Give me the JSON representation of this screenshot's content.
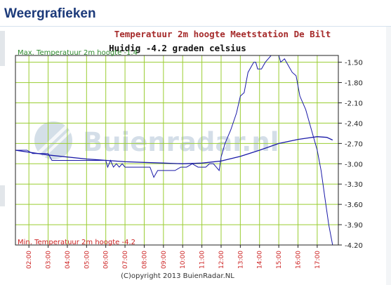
{
  "header": {
    "title": "Weergrafieken"
  },
  "chart_data": {
    "type": "line",
    "title": "Temperatuur 2m hoogte Meetstation De Bilt",
    "subtitle": "Huidig -4.2 graden celsius",
    "max_label": "Max. Temperatuur 2m hoogte -1.4",
    "min_label": "Min. Temperatuur 2m hoogte -4.2",
    "watermark": "Buienradar.nl",
    "copyright": "(C)opyright 2013 BuienRadar.NL",
    "xlim": [
      1.3,
      18.1
    ],
    "ylim": [
      -4.2,
      -1.4
    ],
    "x_ticks": [
      2,
      3,
      4,
      5,
      6,
      7,
      8,
      9,
      10,
      11,
      12,
      13,
      14,
      15,
      16,
      17
    ],
    "x_tick_labels": [
      "02:00",
      "03:00",
      "04:00",
      "05:00",
      "06:00",
      "07:00",
      "08:00",
      "09:00",
      "10:00",
      "11:00",
      "12:00",
      "13:00",
      "14:00",
      "15:00",
      "16:00",
      "17:00"
    ],
    "y_ticks": [
      -1.5,
      -1.8,
      -2.1,
      -2.4,
      -2.7,
      -3.0,
      -3.3,
      -3.6,
      -3.9,
      -4.2
    ],
    "y_tick_labels": [
      "-1.50",
      "-1.80",
      "-2.10",
      "-2.40",
      "-2.70",
      "-3.00",
      "-3.30",
      "-3.60",
      "-3.90",
      "-4.20"
    ],
    "grid": true,
    "colors": {
      "title": "#a52a2a",
      "line": "#1a1aa8",
      "grid": "#9acd32",
      "max_label": "#2e8b2e",
      "min_label": "#cc2222",
      "header": "#1c3a7a"
    },
    "series": [
      {
        "x": [
          1.3,
          1.9,
          2.2,
          2.6,
          3.0,
          3.2,
          3.6,
          4.0,
          4.5,
          5.0,
          5.5,
          6.0,
          6.1,
          6.25,
          6.4,
          6.55,
          6.7,
          6.85,
          7.0,
          7.2,
          7.5,
          8.0,
          8.3,
          8.5,
          8.7,
          9.0,
          9.3,
          9.6,
          9.9,
          10.2,
          10.5,
          10.8,
          11.0,
          11.2,
          11.4,
          11.6,
          11.75,
          11.9,
          12.0,
          12.2,
          12.5,
          12.8,
          13.0,
          13.2,
          13.4,
          13.7,
          13.8,
          13.9,
          14.1,
          14.3,
          14.6,
          14.8,
          15.0,
          15.1,
          15.3,
          15.5,
          15.7,
          15.9,
          16.1,
          16.4,
          16.7,
          17.0,
          17.2,
          17.4,
          17.6,
          17.8
        ],
        "y": [
          -2.8,
          -2.8,
          -2.85,
          -2.85,
          -2.85,
          -2.95,
          -2.95,
          -2.95,
          -2.95,
          -2.95,
          -2.95,
          -2.95,
          -3.05,
          -2.95,
          -3.05,
          -3.0,
          -3.05,
          -3.0,
          -3.05,
          -3.05,
          -3.05,
          -3.05,
          -3.05,
          -3.2,
          -3.1,
          -3.1,
          -3.1,
          -3.1,
          -3.05,
          -3.05,
          -3.0,
          -3.05,
          -3.05,
          -3.05,
          -3.0,
          -3.0,
          -3.05,
          -3.1,
          -2.9,
          -2.7,
          -2.5,
          -2.25,
          -2.0,
          -1.95,
          -1.65,
          -1.5,
          -1.5,
          -1.6,
          -1.6,
          -1.5,
          -1.4,
          -1.4,
          -1.4,
          -1.5,
          -1.45,
          -1.55,
          -1.65,
          -1.7,
          -2.0,
          -2.2,
          -2.5,
          -2.8,
          -3.1,
          -3.5,
          -3.9,
          -4.2
        ]
      },
      {
        "x": [
          1.3,
          3.0,
          5.0,
          7.0,
          9.0,
          10.0,
          11.0,
          12.0,
          13.0,
          14.0,
          15.0,
          16.0,
          16.5,
          17.0,
          17.5,
          17.8
        ],
        "y": [
          -2.8,
          -2.87,
          -2.93,
          -2.97,
          -2.99,
          -3.0,
          -2.99,
          -2.96,
          -2.89,
          -2.8,
          -2.7,
          -2.64,
          -2.62,
          -2.6,
          -2.61,
          -2.65
        ]
      }
    ]
  }
}
